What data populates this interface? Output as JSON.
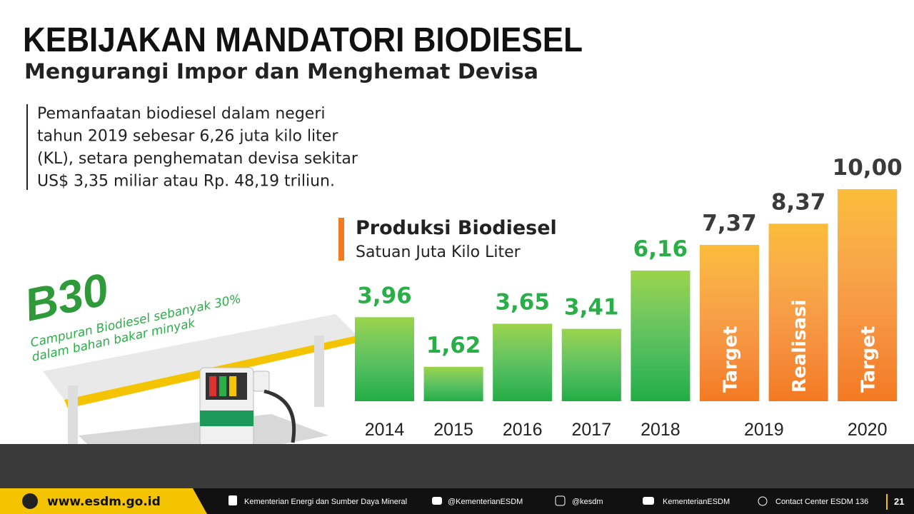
{
  "header": {
    "title": "KEBIJAKAN MANDATORI BIODIESEL",
    "subtitle": "Mengurangi Impor dan Menghemat Devisa"
  },
  "intro": [
    "Pemanfaatan biodiesel dalam negeri",
    "tahun 2019 sebesar 6,26 juta kilo liter",
    "(KL), setara penghematan devisa sekitar",
    "US$ 3,35 miliar atau Rp. 48,19 triliun."
  ],
  "b30": {
    "label": "B30",
    "caption": [
      "Campuran Biodiesel sebanyak 30%",
      "dalam bahan bakar minyak"
    ]
  },
  "chart_data": {
    "type": "bar",
    "title": "Produksi Biodiesel",
    "subtitle": "Satuan Juta Kilo Liter",
    "categories": [
      "2014",
      "2015",
      "2016",
      "2017",
      "2018",
      "2019",
      null,
      "2020"
    ],
    "values": [
      3.96,
      1.62,
      3.65,
      3.41,
      6.16,
      7.37,
      8.37,
      10.0
    ],
    "value_labels": [
      "3,96",
      "1,62",
      "3,65",
      "3,41",
      "6,16",
      "7,37",
      "8,37",
      "10,00"
    ],
    "bar_labels": [
      null,
      null,
      null,
      null,
      null,
      "Target",
      "Realisasi",
      "Target"
    ],
    "colors": [
      "#22ad43",
      "#22ad43",
      "#22ad43",
      "#22ad43",
      "#22ad43",
      "#f47a20",
      "#f47a20",
      "#f47a20"
    ],
    "value_label_colors": [
      "#2aae47",
      "#2aae47",
      "#2aae47",
      "#2aae47",
      "#2aae47",
      "#3a3a3a",
      "#3a3a3a",
      "#3a3a3a"
    ]
  },
  "footer": {
    "website": "www.esdm.go.id",
    "facebook": "Kementerian Energi dan Sumber Daya Mineral",
    "twitter": "@KementerianESDM",
    "instagram": "@kesdm",
    "youtube": "KementerianESDM",
    "contact": "Contact Center ESDM  136",
    "page": "21"
  }
}
